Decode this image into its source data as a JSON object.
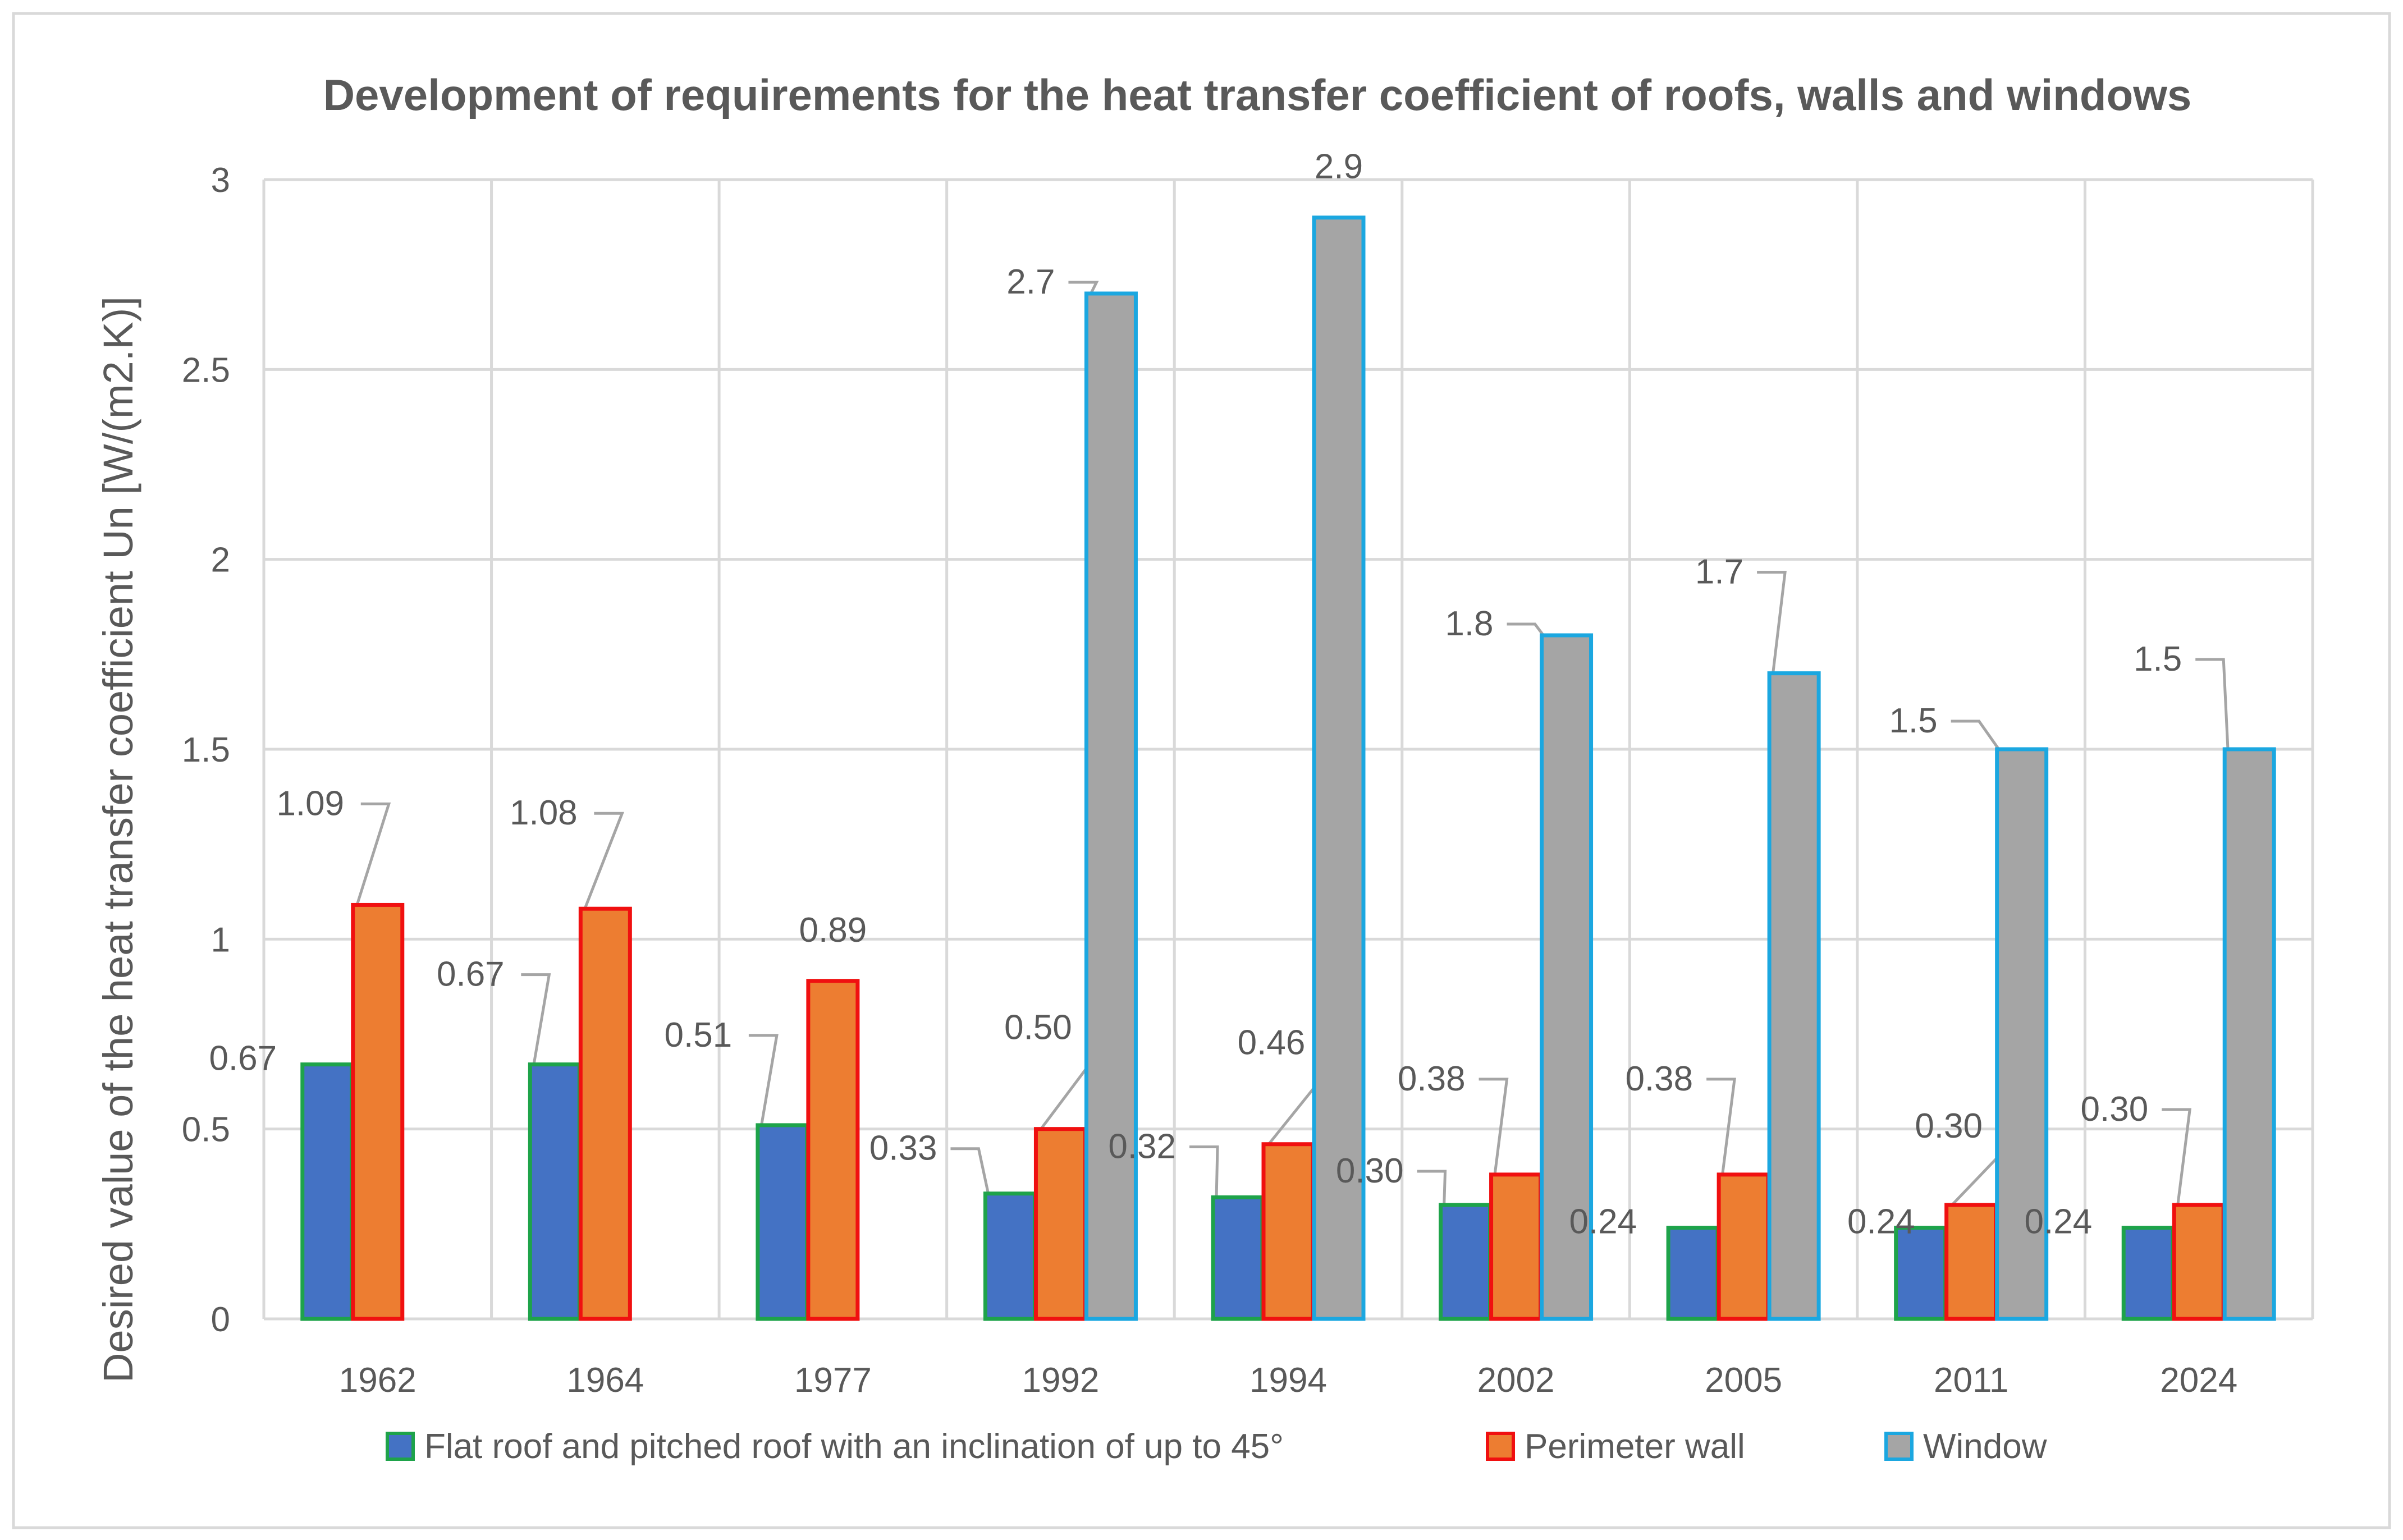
{
  "chart_data": {
    "type": "bar",
    "title": "Development of requirements for the heat transfer coefficient of roofs, walls and windows",
    "ylabel": "Desired value of the heat transfer coefficient Un [W/(m2.K)]",
    "xlabel": "",
    "categories": [
      "1962",
      "1964",
      "1977",
      "1992",
      "1994",
      "2002",
      "2005",
      "2011",
      "2024"
    ],
    "ylim": [
      0,
      3
    ],
    "yticks": [
      "0",
      "0.5",
      "1",
      "1.5",
      "2",
      "2.5",
      "3"
    ],
    "grid": true,
    "legend_position": "bottom",
    "series": [
      {
        "name": "Flat roof and pitched roof with an inclination of up to 45°",
        "values": [
          0.67,
          0.67,
          0.51,
          0.33,
          0.32,
          0.3,
          0.24,
          0.24,
          0.24
        ],
        "labels": [
          "0.67",
          "0.67",
          "0.51",
          "0.33",
          "0.32",
          "0.30",
          "0.24",
          "0.24",
          "0.24"
        ],
        "fill": "#4472C4",
        "stroke": "#1EA34A"
      },
      {
        "name": "Perimeter wall",
        "values": [
          1.09,
          1.08,
          0.89,
          0.5,
          0.46,
          0.38,
          0.38,
          0.3,
          0.3
        ],
        "labels": [
          "1.09",
          "1.08",
          "0.89",
          "0.50",
          "0.46",
          "0.38",
          "0.38",
          "0.30",
          "0.30"
        ],
        "fill": "#ED7D31",
        "stroke": "#F01010"
      },
      {
        "name": "Window",
        "values": [
          null,
          null,
          null,
          2.7,
          2.9,
          1.8,
          1.7,
          1.5,
          1.5
        ],
        "labels": [
          "",
          "",
          "",
          "2.7",
          "2.9",
          "1.8",
          "1.7",
          "1.5",
          "1.5"
        ],
        "fill": "#A5A5A5",
        "stroke": "#1BA7E0"
      }
    ],
    "colors": {
      "grid": "#D9D9D9",
      "axis_text": "#595959",
      "title_text": "#595959",
      "leader_line": "#A5A5A5",
      "border": "#D9D9D9"
    }
  }
}
